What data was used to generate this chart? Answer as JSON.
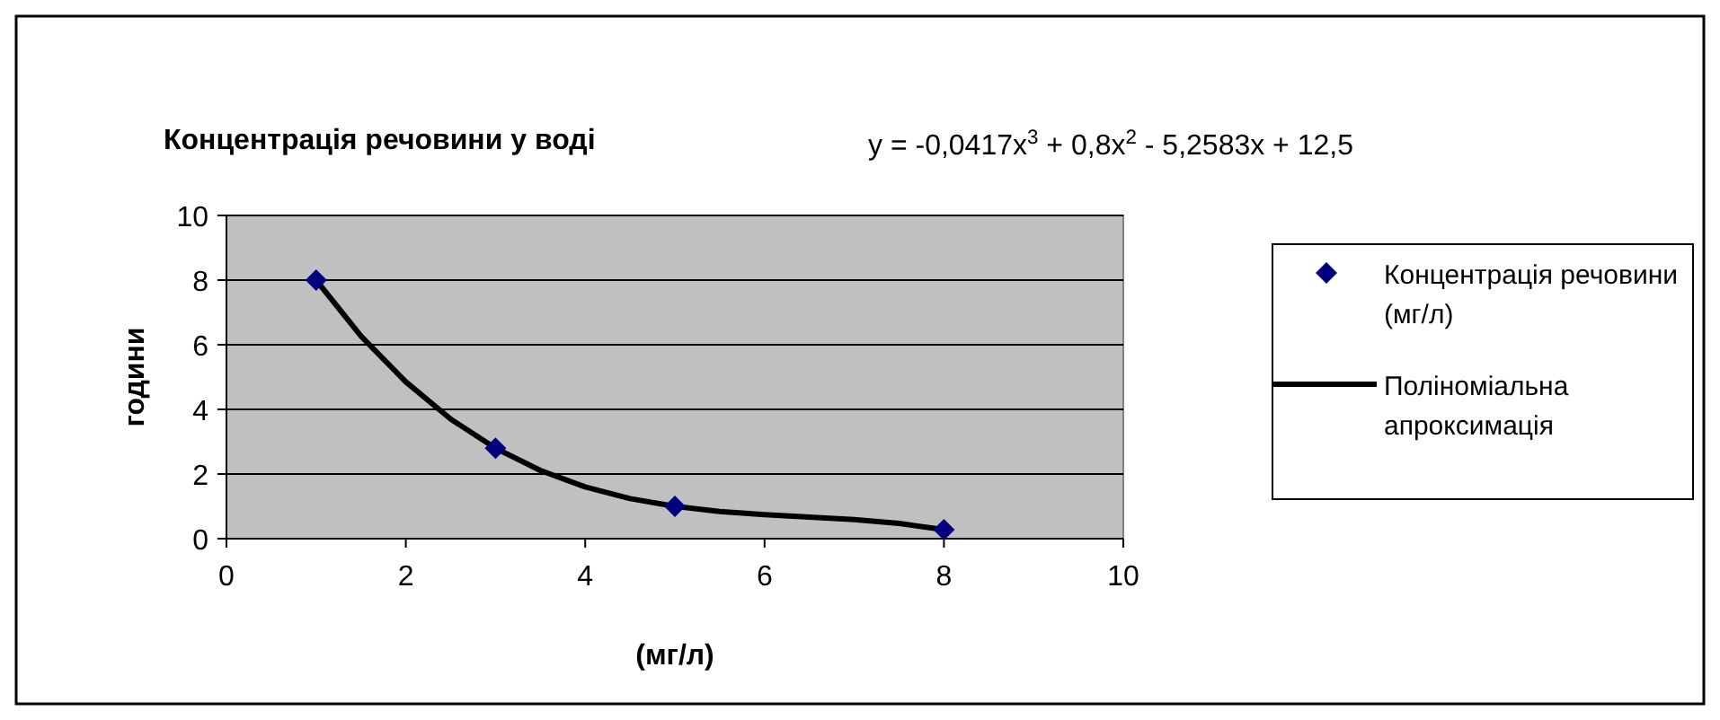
{
  "chart_data": {
    "type": "scatter",
    "title": "Концентрація речовини у воді",
    "xlabel": "(мг/л)",
    "ylabel": "години",
    "annotations": [
      "y = -0,0417x$^{3}$ + 0,8x$^{2}$ - 5,2583x + 12,5"
    ],
    "xlim": [
      0,
      10
    ],
    "ylim": [
      0,
      10
    ],
    "xticks": [
      0,
      2,
      4,
      6,
      8,
      10
    ],
    "yticks": [
      0,
      2,
      4,
      6,
      8,
      10
    ],
    "grid": "y",
    "legend": "right",
    "series": [
      {
        "name": "Концентрація речовини (мг/л)",
        "marker": "diamond",
        "color": "#000080",
        "x": [
          1,
          3,
          5,
          8
        ],
        "values": [
          8,
          2.8,
          1,
          0.28
        ]
      },
      {
        "name": "Поліноміальна апроксимація",
        "type": "line",
        "marker": "none",
        "color": "#000000",
        "line_style": "solid",
        "x": [
          1,
          1.5,
          2,
          2.5,
          3,
          3.5,
          4,
          4.5,
          5,
          5.5,
          6,
          6.5,
          7,
          7.5,
          8
        ],
        "values": [
          8,
          6.27,
          4.85,
          3.7,
          2.8,
          2.11,
          1.6,
          1.24,
          1,
          0.84,
          0.74,
          0.67,
          0.59,
          0.47,
          0.28
        ]
      }
    ]
  }
}
